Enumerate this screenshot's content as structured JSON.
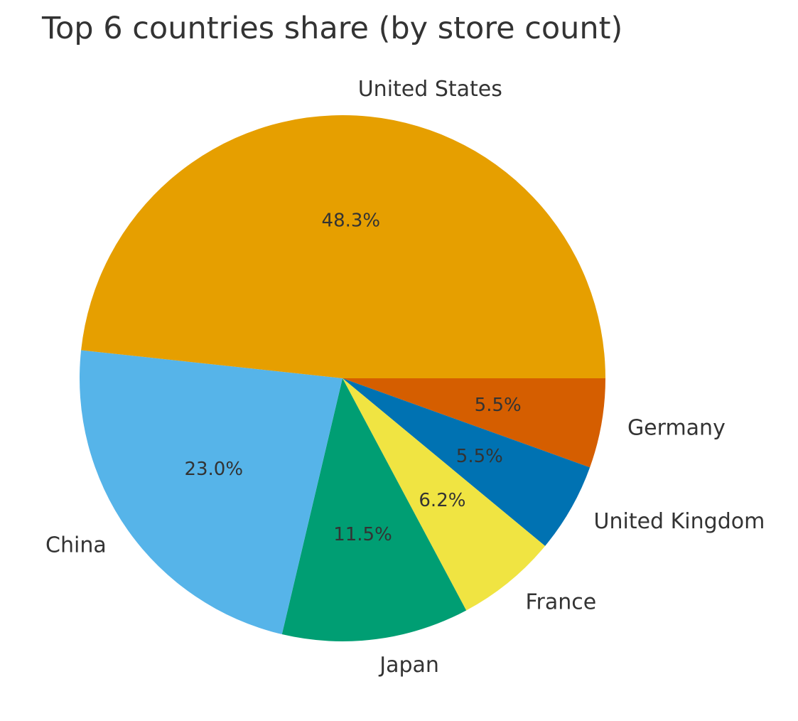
{
  "chart_data": {
    "type": "pie",
    "title": "Top 6 countries share (by store count)",
    "categories": [
      "Germany",
      "United Kingdom",
      "France",
      "Japan",
      "China",
      "United States"
    ],
    "values": [
      5.5,
      5.5,
      6.2,
      11.5,
      23.0,
      48.3
    ],
    "percent_labels": [
      "5.5%",
      "5.5%",
      "6.2%",
      "11.5%",
      "23.0%",
      "48.3%"
    ],
    "colors": [
      "#D55E00",
      "#0072B2",
      "#F0E442",
      "#009E73",
      "#56B4E9",
      "#E69F00"
    ],
    "start_angle_deg": 0,
    "direction": "clockwise",
    "legend": "none"
  }
}
